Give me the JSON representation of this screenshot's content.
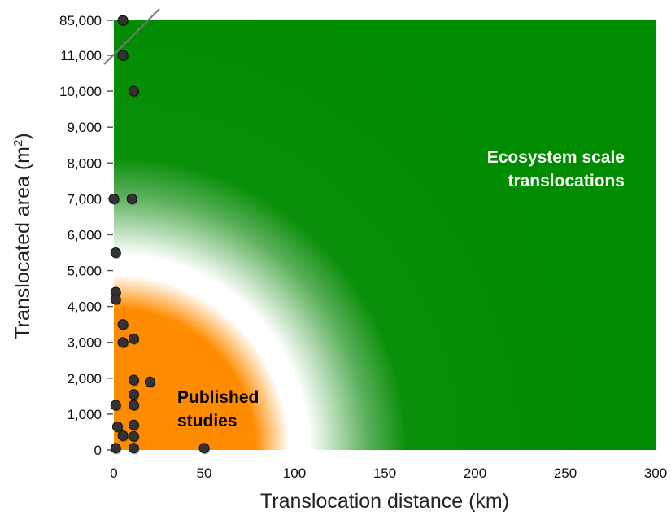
{
  "chart_data": {
    "type": "scatter",
    "title": "",
    "xlabel": "Translocation distance (km)",
    "ylabel_main": "Translocated area (m",
    "ylabel_sup": "2",
    "ylabel_close": ")",
    "xlim": [
      0,
      300
    ],
    "ylim": [
      0,
      11000
    ],
    "x_ticks": [
      0,
      50,
      100,
      150,
      200,
      250,
      300
    ],
    "x_tick_labels": [
      "0",
      "50",
      "100",
      "150",
      "200",
      "250",
      "300"
    ],
    "y_ticks": [
      0,
      1000,
      2000,
      3000,
      4000,
      5000,
      6000,
      7000,
      8000,
      9000,
      10000,
      11000
    ],
    "y_tick_labels": [
      "0",
      "1,000",
      "2,000",
      "3,000",
      "4,000",
      "5,000",
      "6,000",
      "7,000",
      "8,000",
      "9,000",
      "10,000",
      "11,000"
    ],
    "y_break_label": "85,000",
    "y_axis_break": true,
    "grid": false,
    "legend": "none",
    "annotations": [
      {
        "text": "Ecosystem scale",
        "color": "#ffffff"
      },
      {
        "text": "translocations",
        "color": "#ffffff"
      },
      {
        "text": "Published",
        "color": "#000000"
      },
      {
        "text": "studies",
        "color": "#000000"
      }
    ],
    "colors": {
      "published_zone": "#ff8c00",
      "ecosystem_zone": "#008c00",
      "transition": "#ffffff",
      "points": "#333333"
    },
    "series": [
      {
        "points": [
          {
            "x": 5,
            "y": 85000
          },
          {
            "x": 5,
            "y": 11000
          },
          {
            "x": 11,
            "y": 10000
          },
          {
            "x": 0,
            "y": 7000
          },
          {
            "x": 10,
            "y": 7000
          },
          {
            "x": 1,
            "y": 5500
          },
          {
            "x": 1,
            "y": 4400
          },
          {
            "x": 1,
            "y": 4200
          },
          {
            "x": 5,
            "y": 3500
          },
          {
            "x": 5,
            "y": 3000
          },
          {
            "x": 11,
            "y": 3100
          },
          {
            "x": 11,
            "y": 1950
          },
          {
            "x": 20,
            "y": 1900
          },
          {
            "x": 11,
            "y": 1550
          },
          {
            "x": 1,
            "y": 1250
          },
          {
            "x": 11,
            "y": 1250
          },
          {
            "x": 2,
            "y": 650
          },
          {
            "x": 11,
            "y": 700
          },
          {
            "x": 5,
            "y": 400
          },
          {
            "x": 11,
            "y": 380
          },
          {
            "x": 1,
            "y": 50
          },
          {
            "x": 11,
            "y": 50
          },
          {
            "x": 50,
            "y": 50
          }
        ]
      }
    ]
  }
}
